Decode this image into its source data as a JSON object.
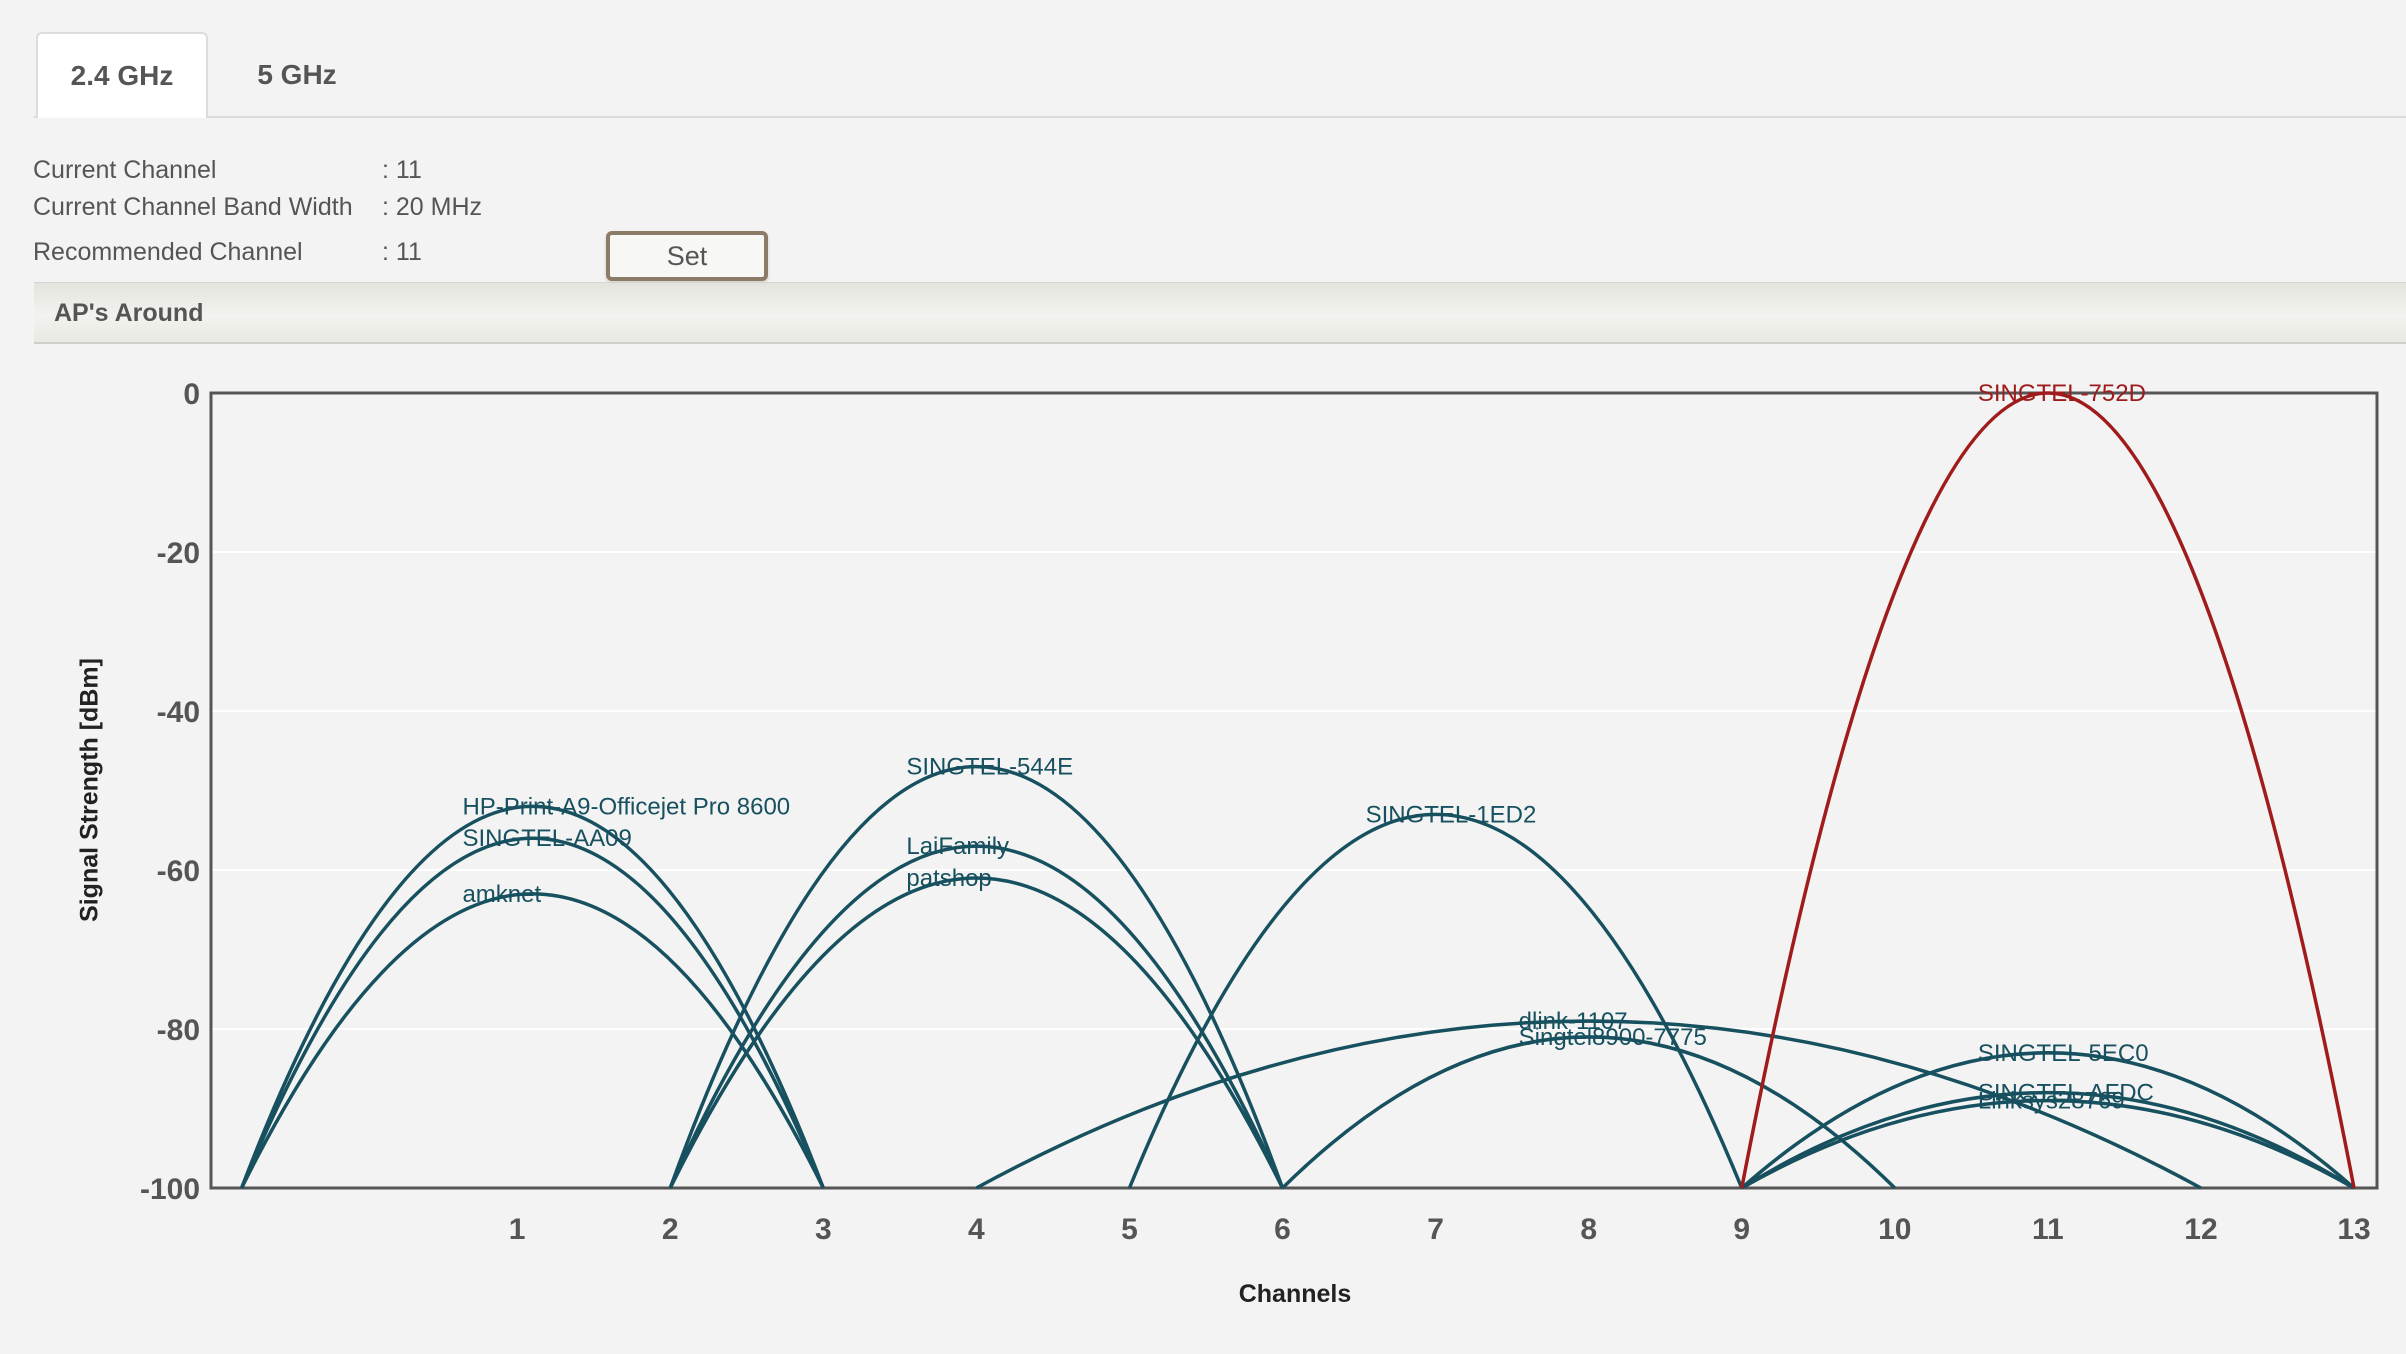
{
  "tabs": [
    {
      "label": "2.4 GHz",
      "active": true
    },
    {
      "label": "5 GHz",
      "active": false
    }
  ],
  "info": {
    "current_channel_label": "Current Channel",
    "current_channel_value": ": 11",
    "bandwidth_label": "Current Channel Band Width",
    "bandwidth_value": ": 20 MHz",
    "recommended_label": "Recommended Channel",
    "recommended_value": ": 11",
    "set_label": "Set"
  },
  "section": {
    "title": "AP's Around"
  },
  "colors": {
    "series": "#17505f",
    "highlight": "#a01c1c"
  },
  "chart_data": {
    "type": "line",
    "xlabel": "Channels",
    "ylabel": "Signal Strength [dBm]",
    "xlim": [
      -1.0,
      13.15
    ],
    "ylim": [
      -100,
      0
    ],
    "x_ticks": [
      1,
      2,
      3,
      4,
      5,
      6,
      7,
      8,
      9,
      10,
      11,
      12,
      13
    ],
    "y_ticks": [
      0,
      -20,
      -40,
      -60,
      -80,
      -100
    ],
    "grid": "horizontal",
    "series": [
      {
        "name": "HP-Print-A9-Officejet Pro 8600",
        "from": -0.8,
        "to": 3,
        "peak": -52,
        "highlight": false
      },
      {
        "name": "SINGTEL-AA09",
        "from": -0.8,
        "to": 3,
        "peak": -56,
        "highlight": false
      },
      {
        "name": "amknet",
        "from": -0.8,
        "to": 3,
        "peak": -63,
        "highlight": false
      },
      {
        "name": "SINGTEL-544E",
        "from": 2,
        "to": 6,
        "peak": -47,
        "highlight": false
      },
      {
        "name": "LaiFamily",
        "from": 2,
        "to": 6,
        "peak": -57,
        "highlight": false
      },
      {
        "name": "patshop",
        "from": 2,
        "to": 6,
        "peak": -61,
        "highlight": false
      },
      {
        "name": "SINGTEL-1ED2",
        "from": 5,
        "to": 9,
        "peak": -53,
        "highlight": false
      },
      {
        "name": "dlink-1107",
        "from": 4,
        "to": 12,
        "peak": -79,
        "highlight": false
      },
      {
        "name": "Singtel8900-7775",
        "from": 6,
        "to": 10,
        "peak": -81,
        "highlight": false
      },
      {
        "name": "SINGTEL-5EC0",
        "from": 9,
        "to": 13,
        "peak": -83,
        "highlight": false
      },
      {
        "name": "SINGTEL-AFDC",
        "from": 9,
        "to": 13,
        "peak": -88,
        "highlight": false
      },
      {
        "name": "Linksys28769",
        "from": 9,
        "to": 13,
        "peak": -89,
        "highlight": false
      },
      {
        "name": "SINGTEL-752D",
        "from": 9,
        "to": 13,
        "peak": 0,
        "highlight": true
      }
    ]
  }
}
